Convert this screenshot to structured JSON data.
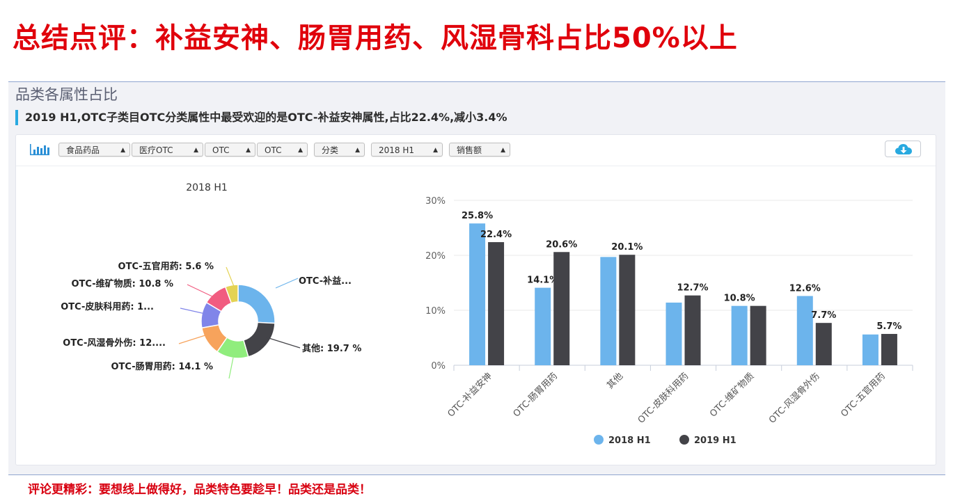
{
  "headline": "总结点评：补益安神、肠胃用药、风湿骨科占比50%以上",
  "section_title": "品类各属性占比",
  "insight": "2019 H1,OTC子类目OTC分类属性中最受欢迎的是OTC-补益安神属性,占比22.4%,减小3.4%",
  "toolbar": {
    "chart_icon": "bar-chart-icon",
    "filters": [
      "食品药品",
      "医疗OTC",
      "OTC",
      "OTC",
      "分类",
      "2018 H1",
      "销售额"
    ],
    "download_icon": "cloud-download-icon"
  },
  "colors": {
    "headline": "#e0000b",
    "accent": "#28a9e0",
    "series_2018": "#6cb4ec",
    "series_2019": "#434348"
  },
  "chart_data": [
    {
      "type": "pie",
      "variant": "donut",
      "title": "2018 H1",
      "slices": [
        {
          "label": "OTC-补益...",
          "value": 25.8,
          "color": "#6cb4ec"
        },
        {
          "label": "其他: 19.7 %",
          "value": 19.7,
          "color": "#434348"
        },
        {
          "label": "OTC-肠胃用药: 14.1 %",
          "value": 14.1,
          "color": "#90ed7d"
        },
        {
          "label": "OTC-风湿骨外伤: 12....",
          "value": 12.6,
          "color": "#f7a35c"
        },
        {
          "label": "OTC-皮肤科用药: 1...",
          "value": 11.4,
          "color": "#8085e9"
        },
        {
          "label": "OTC-维矿物质: 10.8 %",
          "value": 10.8,
          "color": "#f15c80"
        },
        {
          "label": "OTC-五官用药: 5.6 %",
          "value": 5.6,
          "color": "#e4d354"
        }
      ]
    },
    {
      "type": "bar",
      "categories": [
        "OTC-补益安神",
        "OTC-肠胃用药",
        "其他",
        "OTC-皮肤科用药",
        "OTC-维矿物质",
        "OTC-风湿骨外伤",
        "OTC-五官用药"
      ],
      "series": [
        {
          "name": "2018 H1",
          "values": [
            25.8,
            14.1,
            19.7,
            11.4,
            10.8,
            12.6,
            5.6
          ],
          "labels": [
            "25.8%",
            "14.1%",
            "",
            "",
            "10.8%",
            "12.6%",
            ""
          ]
        },
        {
          "name": "2019 H1",
          "values": [
            22.4,
            20.6,
            20.1,
            12.7,
            10.8,
            7.7,
            5.7
          ],
          "labels": [
            "22.4%",
            "20.6%",
            "20.1%",
            "12.7%",
            "",
            "7.7%",
            "5.7%"
          ]
        }
      ],
      "yticks": [
        "0%",
        "10%",
        "20%",
        "30%"
      ],
      "ylim": [
        0,
        30
      ],
      "legend_position": "bottom"
    }
  ],
  "footer": "评论更精彩：要想线上做得好，品类特色要趁早！品类还是品类！"
}
